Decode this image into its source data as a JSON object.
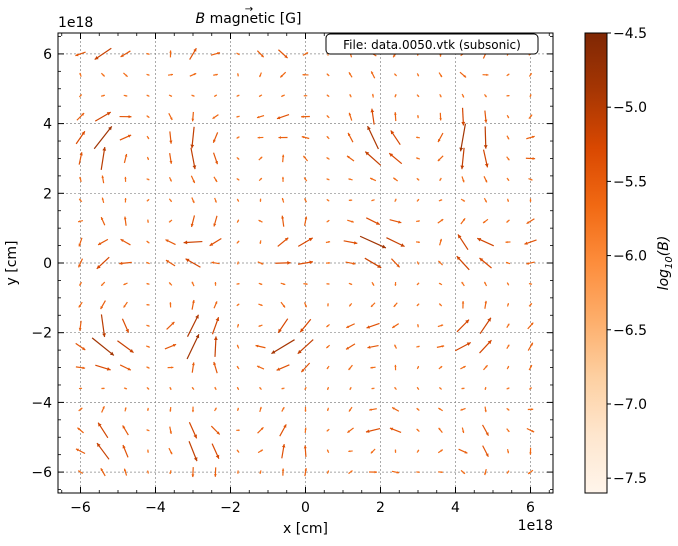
{
  "chart_data": {
    "type": "quiver",
    "title": "B⃗ magnetic [G]",
    "title_symbol": "B",
    "title_rest": " magnetic [G]",
    "annotation": "File: data.0050.vtk (subsonic)",
    "xlabel": "x [cm]",
    "ylabel": "y [cm]",
    "x_offset_text": "1e18",
    "y_offset_text": "1e18",
    "xlim": [
      -6.6,
      6.6
    ],
    "ylim": [
      -6.6,
      6.6
    ],
    "xticks": [
      -6,
      -4,
      -2,
      0,
      2,
      4,
      6
    ],
    "yticks": [
      -6,
      -4,
      -2,
      0,
      2,
      4,
      6
    ],
    "xtick_labels": [
      "−6",
      "−4",
      "−2",
      "0",
      "2",
      "4",
      "6"
    ],
    "ytick_labels": [
      "−6",
      "−4",
      "−2",
      "0",
      "2",
      "4",
      "6"
    ],
    "grid": true,
    "grid_spacing_units": 2,
    "arrow_grid_step": 0.6,
    "arrow_grid_start": -6.0,
    "arrow_grid_count": 21,
    "colorbar": {
      "label": "log₁₀(B)",
      "label_base": "log",
      "label_sub": "10",
      "label_arg": "(B)",
      "min": -7.6,
      "max": -4.5,
      "ticks": [
        -4.5,
        -5.0,
        -5.5,
        -6.0,
        -6.5,
        -7.0,
        -7.5
      ],
      "tick_labels": [
        "−4.5",
        "−5.0",
        "−5.5",
        "−6.0",
        "−6.5",
        "−7.0",
        "−7.5"
      ],
      "colormap": "Oranges",
      "colors": [
        "#fff5eb",
        "#fee6ce",
        "#fdd0a2",
        "#fdae6b",
        "#fd8d3c",
        "#f16913",
        "#d94801",
        "#a63603",
        "#7f2704"
      ]
    },
    "field_colors": {
      "dominant": "#e6550d",
      "strong": "#a63603"
    },
    "field_pattern": "turbulent subsonic magnetic field sampled on a 21×21 grid; arrows show field direction, length and colour scale with log10(B)"
  }
}
